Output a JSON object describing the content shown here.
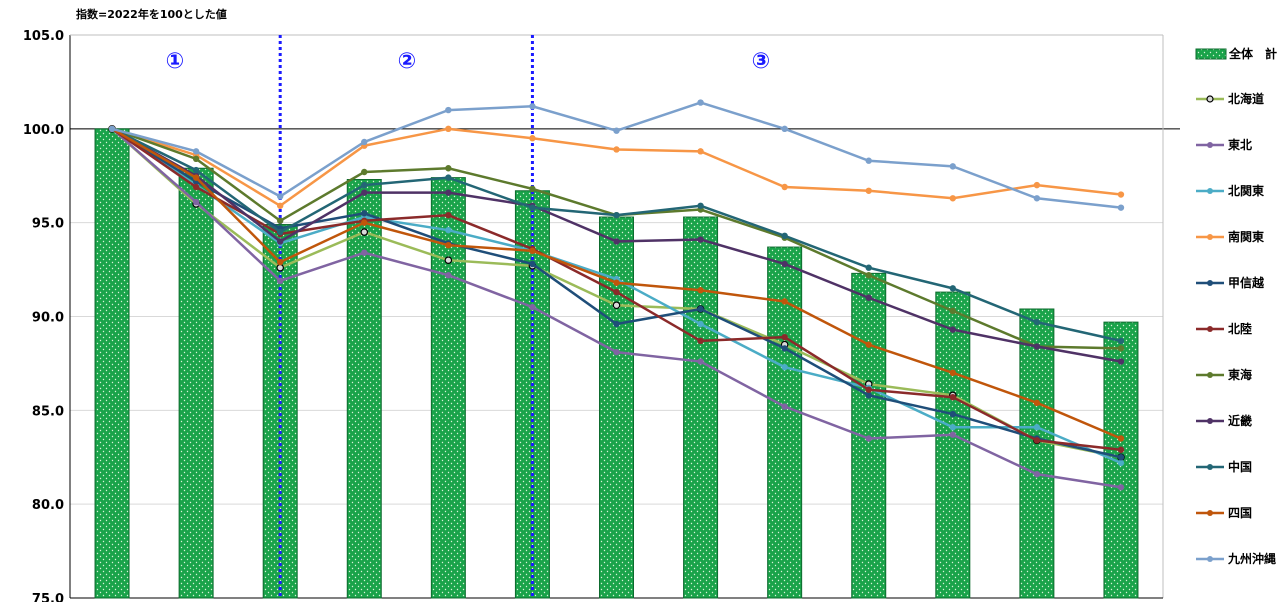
{
  "chart_data": {
    "type": "bar+line",
    "subtitle": "指数=2022年を100とした値",
    "ylim": [
      75,
      105
    ],
    "yticks": [
      "75.0",
      "80.0",
      "85.0",
      "90.0",
      "95.0",
      "100.0",
      "105.0"
    ],
    "reference_line": 100,
    "bar_series": {
      "name": "全体　計",
      "color": "#1aa34a",
      "values": [
        100.0,
        97.9,
        94.9,
        97.3,
        97.4,
        96.7,
        95.3,
        95.3,
        93.7,
        92.3,
        91.3,
        90.4,
        89.7
      ]
    },
    "series": [
      {
        "name": "北海道",
        "color": "#9bbb59",
        "marker": "hollow",
        "values": [
          100.0,
          96.0,
          92.6,
          94.5,
          93.0,
          92.7,
          90.6,
          90.4,
          88.5,
          86.4,
          85.8,
          83.4,
          82.5
        ]
      },
      {
        "name": "東北",
        "color": "#8064a2",
        "values": [
          100.0,
          96.1,
          91.9,
          93.4,
          92.2,
          90.5,
          88.1,
          87.6,
          85.2,
          83.5,
          83.7,
          81.6,
          80.9
        ]
      },
      {
        "name": "北関東",
        "color": "#4bacc6",
        "values": [
          100.0,
          97.0,
          93.9,
          95.3,
          94.6,
          93.5,
          92.0,
          89.6,
          87.3,
          86.2,
          84.1,
          84.1,
          82.2
        ]
      },
      {
        "name": "南関東",
        "color": "#f79646",
        "values": [
          100.0,
          98.6,
          95.9,
          99.1,
          100.0,
          99.5,
          98.9,
          98.8,
          96.9,
          96.7,
          96.3,
          97.0,
          96.5
        ]
      },
      {
        "name": "甲信越",
        "color": "#1f4e79",
        "values": [
          100.0,
          97.2,
          94.7,
          95.5,
          93.9,
          92.8,
          89.6,
          90.4,
          88.3,
          85.8,
          84.8,
          83.5,
          82.5
        ]
      },
      {
        "name": "北陸",
        "color": "#8b2a2a",
        "values": [
          100.0,
          96.9,
          94.4,
          95.1,
          95.4,
          93.6,
          91.3,
          88.7,
          88.9,
          86.1,
          85.7,
          83.4,
          82.9
        ]
      },
      {
        "name": "東海",
        "color": "#5d7a2d",
        "values": [
          100.0,
          98.4,
          95.1,
          97.7,
          97.9,
          96.8,
          95.4,
          95.7,
          94.2,
          92.2,
          90.3,
          88.4,
          88.3
        ]
      },
      {
        "name": "近畿",
        "color": "#4f3266",
        "values": [
          100.0,
          97.5,
          94.0,
          96.6,
          96.6,
          95.9,
          94.0,
          94.1,
          92.8,
          91.0,
          89.3,
          88.4,
          87.6
        ]
      },
      {
        "name": "中国",
        "color": "#236675",
        "values": [
          100.0,
          97.8,
          94.5,
          97.0,
          97.4,
          95.8,
          95.4,
          95.9,
          94.3,
          92.6,
          91.5,
          89.7,
          88.7
        ]
      },
      {
        "name": "四国",
        "color": "#c0560b",
        "values": [
          100.0,
          97.4,
          92.9,
          95.0,
          93.8,
          93.5,
          91.8,
          91.4,
          90.8,
          88.5,
          87.0,
          85.4,
          83.5
        ]
      },
      {
        "name": "九州沖縄",
        "color": "#7ba0cc",
        "values": [
          100.0,
          98.8,
          96.4,
          99.3,
          101.0,
          101.2,
          99.9,
          101.4,
          100.0,
          98.3,
          98.0,
          96.3,
          95.8
        ]
      }
    ],
    "dividers_after_index": [
      2,
      5
    ],
    "annotations": [
      "①",
      "②",
      "③"
    ],
    "annotation_color": "#1a1aff",
    "divider_color": "#1a1aff",
    "legend_position": "right"
  }
}
